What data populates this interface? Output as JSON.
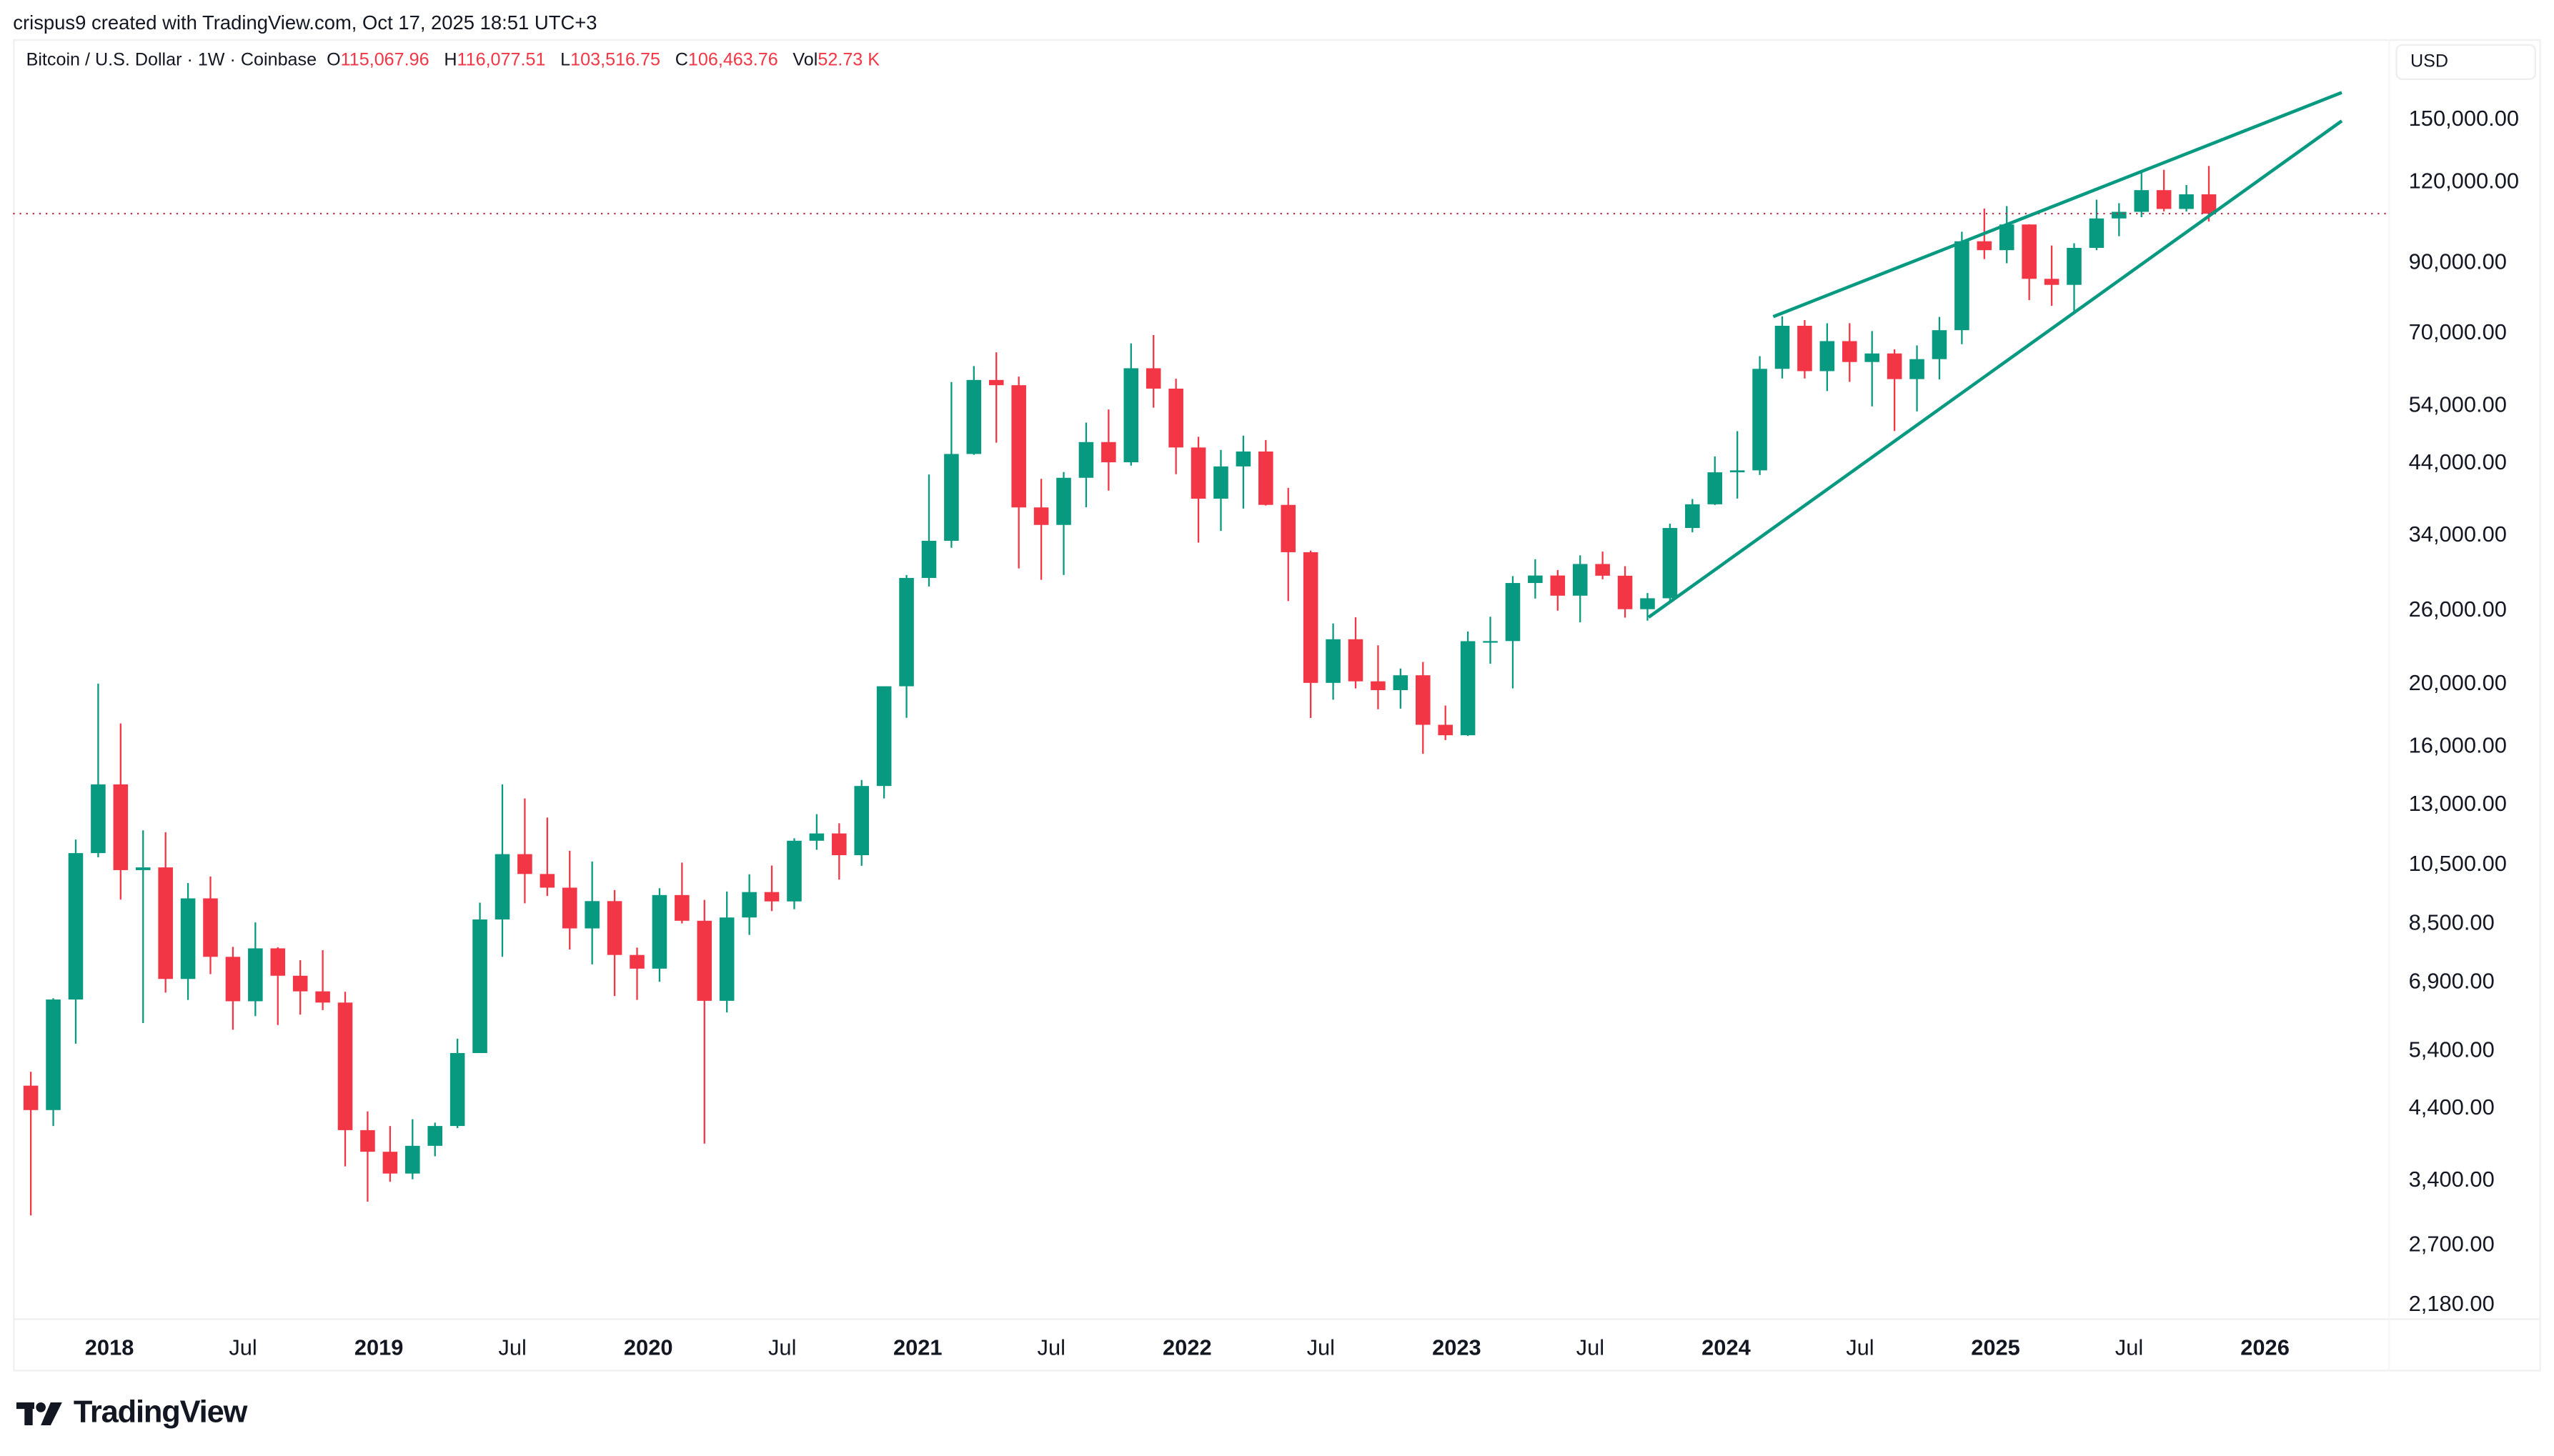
{
  "credit": "crispus9 created with TradingView.com, Oct 17, 2025 18:51 UTC+3",
  "legend": {
    "symbol": "Bitcoin / U.S. Dollar · 1W · Coinbase",
    "o_label": "O",
    "o": "115,067.96",
    "h_label": "H",
    "h": "116,077.51",
    "l_label": "L",
    "l": "103,516.75",
    "c_label": "C",
    "c": "106,463.76",
    "vol_label": "Vol",
    "vol": "52.73 K"
  },
  "currency": "USD",
  "logo": "TradingView",
  "colors": {
    "up": "#089981",
    "down": "#f23645",
    "trendline": "#089981",
    "price_line": "#b2354a"
  },
  "chart_data": {
    "type": "candlestick",
    "scale": "log",
    "grid": false,
    "ylim": [
      1950,
      175000
    ],
    "xlim": [
      "2017-08-25",
      "2026-06-10"
    ],
    "y_ticks": [
      "150,000.00",
      "120,000.00",
      "90,000.00",
      "70,000.00",
      "54,000.00",
      "44,000.00",
      "34,000.00",
      "26,000.00",
      "20,000.00",
      "16,000.00",
      "13,000.00",
      "10,500.00",
      "8,500.00",
      "6,900.00",
      "5,400.00",
      "4,400.00",
      "3,400.00",
      "2,700.00",
      "2,180.00"
    ],
    "x_ticks": [
      {
        "label": "2018",
        "date": "2018-01-01",
        "year": true
      },
      {
        "label": "Jul",
        "date": "2018-07-01"
      },
      {
        "label": "2019",
        "date": "2019-01-01",
        "year": true
      },
      {
        "label": "Jul",
        "date": "2019-07-01"
      },
      {
        "label": "2020",
        "date": "2020-01-01",
        "year": true
      },
      {
        "label": "Jul",
        "date": "2020-07-01"
      },
      {
        "label": "2021",
        "date": "2021-01-01",
        "year": true
      },
      {
        "label": "Jul",
        "date": "2021-07-01"
      },
      {
        "label": "2022",
        "date": "2022-01-01",
        "year": true
      },
      {
        "label": "Jul",
        "date": "2022-07-01"
      },
      {
        "label": "2023",
        "date": "2023-01-01",
        "year": true
      },
      {
        "label": "Jul",
        "date": "2023-07-01"
      },
      {
        "label": "2024",
        "date": "2024-01-01",
        "year": true
      },
      {
        "label": "Jul",
        "date": "2024-07-01"
      },
      {
        "label": "2025",
        "date": "2025-01-01",
        "year": true
      },
      {
        "label": "Jul",
        "date": "2025-07-01"
      },
      {
        "label": "2026",
        "date": "2026-01-01",
        "year": true
      }
    ],
    "current_price": 106463.76,
    "trendlines": [
      {
        "from": {
          "date": "2024-03-05",
          "price": 73700
        },
        "to": {
          "date": "2026-04-15",
          "price": 164000
        }
      },
      {
        "from": {
          "date": "2023-09-18",
          "price": 25200
        },
        "to": {
          "date": "2026-04-15",
          "price": 148200
        }
      }
    ],
    "candles_ohlc_start": "2017-09",
    "candles_ohlc_monthly_approx": [
      [
        4735,
        4975,
        2980,
        4340
      ],
      [
        4340,
        6470,
        4100,
        6440
      ],
      [
        6440,
        11400,
        5500,
        10860
      ],
      [
        10860,
        19890,
        10700,
        13880
      ],
      [
        13880,
        17250,
        9200,
        10220
      ],
      [
        10220,
        11780,
        5920,
        10320
      ],
      [
        10320,
        11700,
        6600,
        6930
      ],
      [
        6930,
        9760,
        6430,
        9240
      ],
      [
        9240,
        9990,
        7050,
        7500
      ],
      [
        7500,
        7770,
        5780,
        6400
      ],
      [
        6400,
        8480,
        6070,
        7730
      ],
      [
        7730,
        7760,
        5880,
        7010
      ],
      [
        7010,
        7410,
        6100,
        6630
      ],
      [
        6630,
        7680,
        6200,
        6370
      ],
      [
        6370,
        6620,
        3550,
        4040
      ],
      [
        4040,
        4320,
        3130,
        3740
      ],
      [
        3740,
        4100,
        3360,
        3460
      ],
      [
        3460,
        4200,
        3390,
        3820
      ],
      [
        3820,
        4150,
        3680,
        4100
      ],
      [
        4100,
        5600,
        4070,
        5320
      ],
      [
        5320,
        9100,
        5320,
        8570
      ],
      [
        8570,
        13880,
        7500,
        10820
      ],
      [
        10820,
        13200,
        9080,
        10080
      ],
      [
        10080,
        12330,
        9320,
        9600
      ],
      [
        9600,
        10950,
        7700,
        8300
      ],
      [
        8300,
        10540,
        7300,
        9150
      ],
      [
        9150,
        9520,
        6520,
        7550
      ],
      [
        7550,
        7750,
        6430,
        7190
      ],
      [
        7190,
        9580,
        6860,
        9350
      ],
      [
        9350,
        10500,
        8450,
        8530
      ],
      [
        8530,
        9190,
        3850,
        6410
      ],
      [
        6410,
        9470,
        6150,
        8630
      ],
      [
        8630,
        10070,
        8110,
        9450
      ],
      [
        9450,
        10390,
        8830,
        9140
      ],
      [
        9140,
        11450,
        8890,
        11350
      ],
      [
        11350,
        12480,
        10990,
        11650
      ],
      [
        11650,
        12080,
        9880,
        10780
      ],
      [
        10780,
        14100,
        10380,
        13800
      ],
      [
        13800,
        19490,
        13200,
        19700
      ],
      [
        19700,
        29300,
        17600,
        29000
      ],
      [
        29000,
        41950,
        28130,
        33110
      ],
      [
        33110,
        58350,
        32300,
        45140
      ],
      [
        45140,
        61790,
        45000,
        58790
      ],
      [
        58790,
        64900,
        47000,
        57700
      ],
      [
        57700,
        59500,
        30000,
        37300
      ],
      [
        37300,
        41300,
        28800,
        35040
      ],
      [
        35040,
        42320,
        29300,
        41460
      ],
      [
        41460,
        50500,
        37330,
        47100
      ],
      [
        47100,
        52920,
        39600,
        43820
      ],
      [
        43820,
        67000,
        43300,
        61300
      ],
      [
        61300,
        69000,
        53250,
        57000
      ],
      [
        57000,
        59050,
        42000,
        46200
      ],
      [
        46200,
        47990,
        32900,
        38480
      ],
      [
        38480,
        45800,
        34300,
        43180
      ],
      [
        43180,
        48200,
        37150,
        45540
      ],
      [
        45540,
        47450,
        37550,
        37640
      ],
      [
        37640,
        40000,
        26700,
        31790
      ],
      [
        31790,
        31980,
        17590,
        19940
      ],
      [
        19940,
        24650,
        18780,
        23300
      ],
      [
        23300,
        25200,
        19550,
        20050
      ],
      [
        20050,
        22800,
        18150,
        19430
      ],
      [
        19430,
        20990,
        18190,
        20490
      ],
      [
        20490,
        21480,
        15480,
        17170
      ],
      [
        17170,
        18390,
        16260,
        16540
      ],
      [
        16540,
        23960,
        16500,
        23140
      ],
      [
        23140,
        25250,
        21350,
        23150
      ],
      [
        23150,
        29190,
        19550,
        28480
      ],
      [
        28480,
        31000,
        26940,
        29250
      ],
      [
        29250,
        29830,
        25800,
        27220
      ],
      [
        27220,
        31430,
        24760,
        30480
      ],
      [
        30480,
        31860,
        28860,
        29230
      ],
      [
        29230,
        30240,
        25170,
        25940
      ],
      [
        25940,
        27480,
        24900,
        26970
      ],
      [
        26970,
        35200,
        26560,
        34660
      ],
      [
        34660,
        38440,
        34130,
        37720
      ],
      [
        37720,
        44750,
        37620,
        42280
      ],
      [
        42280,
        48970,
        38500,
        42580
      ],
      [
        42580,
        64000,
        41880,
        61170
      ],
      [
        61170,
        73780,
        59100,
        71330
      ],
      [
        71330,
        72800,
        59100,
        60670
      ],
      [
        60670,
        71980,
        56500,
        67530
      ],
      [
        67530,
        72000,
        58400,
        62680
      ],
      [
        62680,
        70000,
        53500,
        64620
      ],
      [
        64620,
        65600,
        49000,
        58970
      ],
      [
        58970,
        66500,
        52550,
        63330
      ],
      [
        63330,
        73620,
        58900,
        70220
      ],
      [
        70220,
        99800,
        66800,
        96450
      ],
      [
        96450,
        108400,
        90500,
        93430
      ],
      [
        93430,
        109350,
        89160,
        102410
      ],
      [
        102410,
        102500,
        78170,
        84350
      ],
      [
        84350,
        95000,
        76600,
        82550
      ],
      [
        82550,
        95760,
        74420,
        94200
      ],
      [
        94200,
        111880,
        93400,
        104640
      ],
      [
        104640,
        110500,
        98200,
        107140
      ],
      [
        107140,
        123230,
        105100,
        115760
      ],
      [
        115760,
        124460,
        107300,
        108250
      ],
      [
        108250,
        117900,
        107250,
        114050
      ],
      [
        114050,
        126200,
        103500,
        106460
      ]
    ]
  }
}
